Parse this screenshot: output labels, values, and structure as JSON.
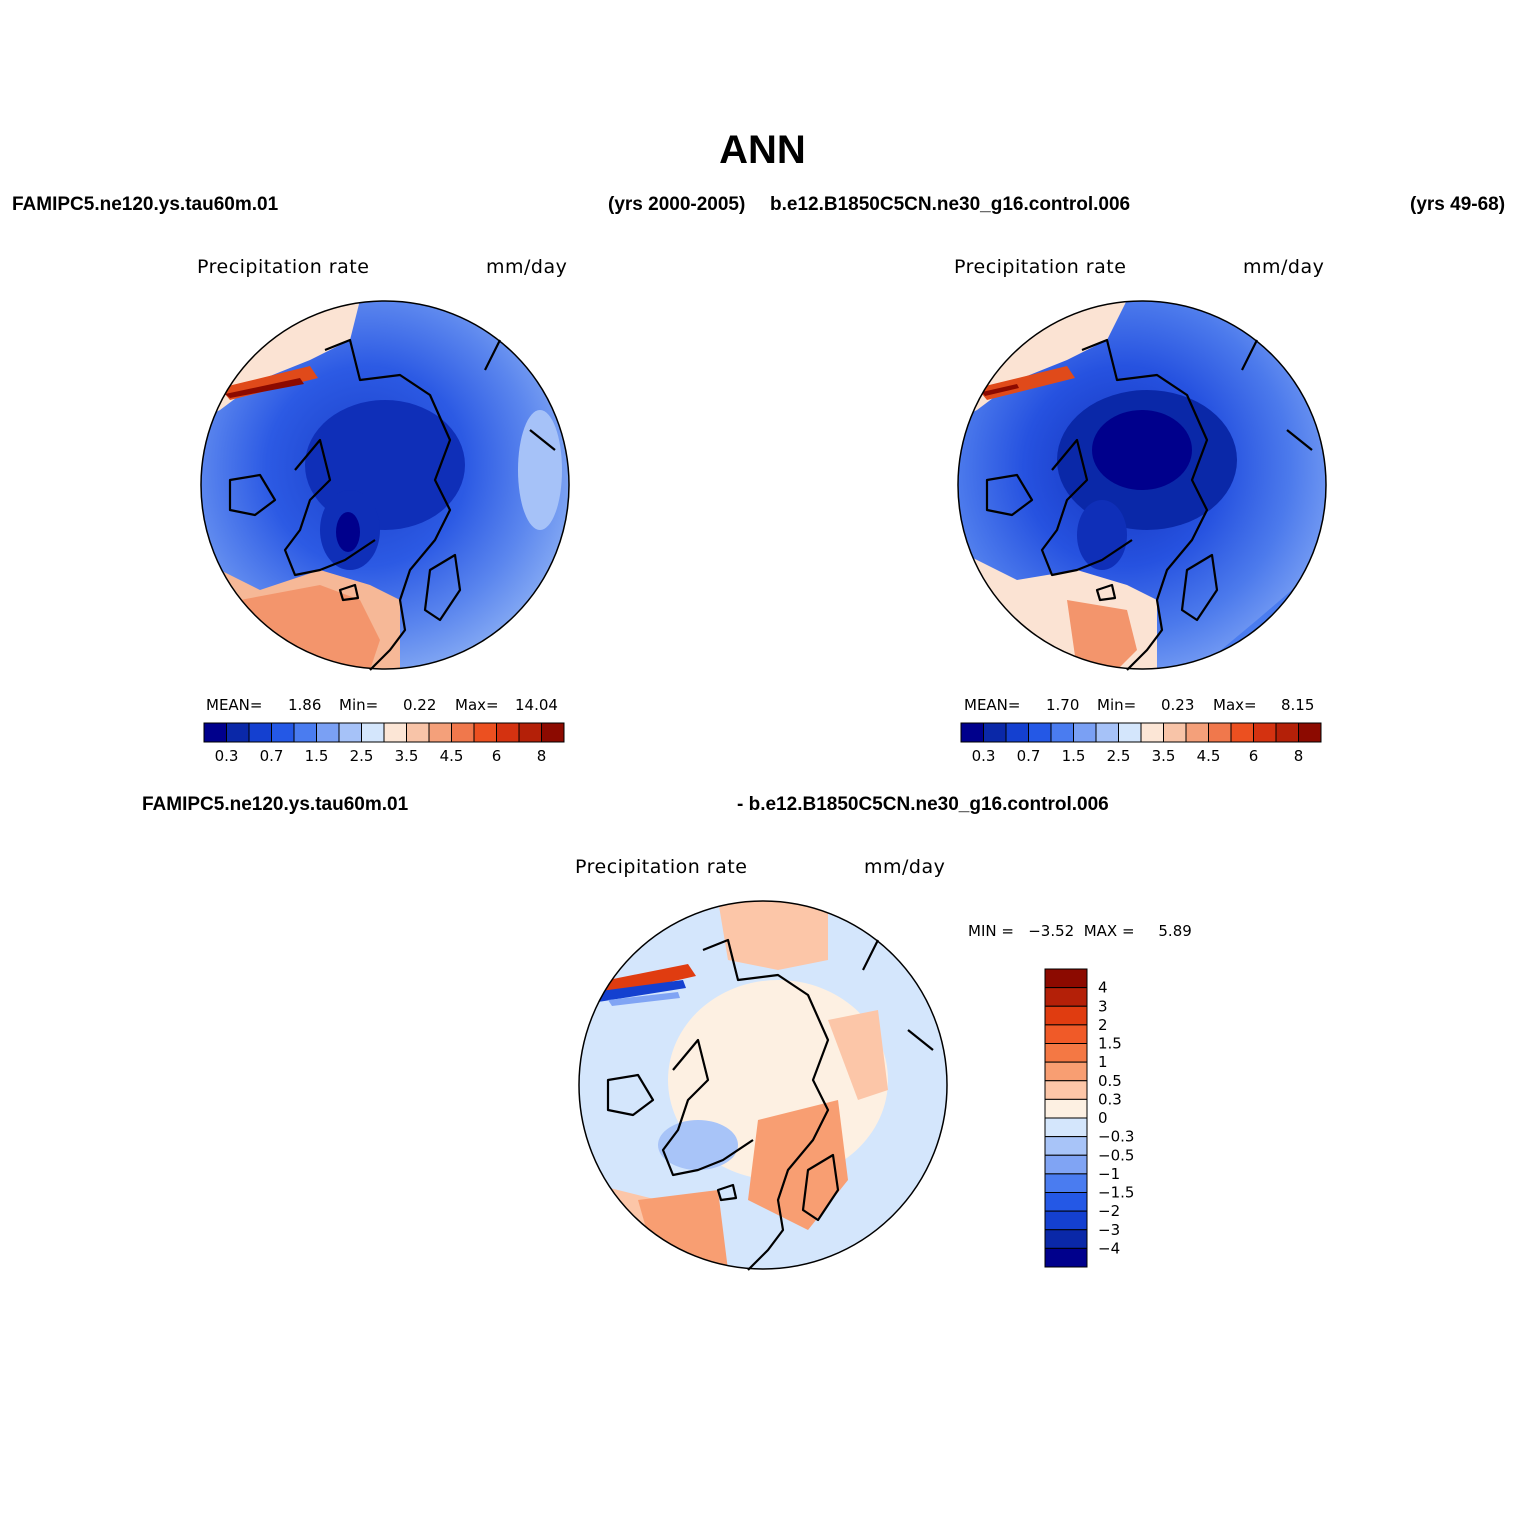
{
  "title": "ANN",
  "header": {
    "case1": "FAMIPC5.ne120.ys.tau60m.01",
    "years1": "(yrs 2000-2005)",
    "case2": "b.e12.B1850C5CN.ne30_g16.control.006",
    "years2": "(yrs 49-68)"
  },
  "diff_header": {
    "left": "FAMIPC5.ne120.ys.tau60m.01",
    "right": "- b.e12.B1850C5CN.ne30_g16.control.006"
  },
  "panels": [
    {
      "variable": "Precipitation rate",
      "units": "mm/day",
      "mean_label": "MEAN=",
      "mean": "1.86",
      "min_label": "Min=",
      "min": "0.22",
      "max_label": "Max=",
      "max": "14.04"
    },
    {
      "variable": "Precipitation rate",
      "units": "mm/day",
      "mean_label": "MEAN=",
      "mean": "1.70",
      "min_label": "Min=",
      "min": "0.23",
      "max_label": "Max=",
      "max": "8.15"
    }
  ],
  "diff_panel": {
    "variable": "Precipitation rate",
    "units": "mm/day",
    "minmax": "MIN =   −3.52  MAX =     5.89"
  },
  "colorbar_abs": {
    "colors": [
      "#00008c",
      "#0a28a8",
      "#1440d0",
      "#2458e6",
      "#4a7cf0",
      "#7aa0f4",
      "#a6c2f8",
      "#d4e6fc",
      "#fce6d6",
      "#f8c4a8",
      "#f4a07a",
      "#f0784c",
      "#ec5020",
      "#d43210",
      "#b42008",
      "#8c0a00"
    ],
    "labels": [
      "0.3",
      "0.7",
      "1.5",
      "2.5",
      "3.5",
      "4.5",
      "6",
      "8"
    ]
  },
  "colorbar_diff": {
    "colors": [
      "#8c0a00",
      "#b42008",
      "#e03c10",
      "#f05a28",
      "#f47844",
      "#f89e72",
      "#fcc6a8",
      "#fdf0e2",
      "#d4e6fc",
      "#a8c4f8",
      "#80a4f4",
      "#4a7cf0",
      "#2458e6",
      "#1440d0",
      "#0a28a8",
      "#00008c"
    ],
    "labels": [
      "4",
      "3",
      "2",
      "1.5",
      "1",
      "0.5",
      "0.3",
      "0",
      "−0.3",
      "−0.5",
      "−1",
      "−1.5",
      "−2",
      "−3",
      "−4"
    ]
  }
}
